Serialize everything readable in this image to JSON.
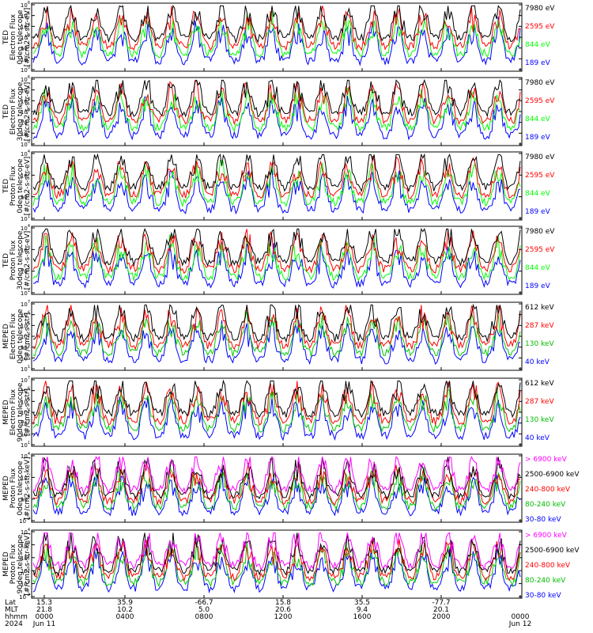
{
  "chart_data": [
    {
      "type": "line",
      "instrument": "TED",
      "ylabel_lines": [
        "TED",
        "Electron Flux",
        "0deg telescope",
        "[#/cm2-s-str-eV]"
      ],
      "yticks": [
        "10^0",
        "10^1",
        "10^2",
        "10^3",
        "10^4",
        "10^5",
        "10^6"
      ],
      "ylim": [
        1,
        1000000
      ],
      "yscale": "log",
      "series": [
        {
          "name": "7980 eV",
          "color": "#000000"
        },
        {
          "name": "2595 eV",
          "color": "#ff0000"
        },
        {
          "name": "844 eV",
          "color": "#00ff00"
        },
        {
          "name": "189 eV",
          "color": "#0000ff"
        }
      ]
    },
    {
      "type": "line",
      "instrument": "TED",
      "ylabel_lines": [
        "TED",
        "Electron Flux",
        "30deg telescope",
        "[#/cm2-s-str-eV]"
      ],
      "yticks": [
        "10^0",
        "10^1",
        "10^2",
        "10^3",
        "10^4",
        "10^5",
        "10^6"
      ],
      "ylim": [
        1,
        1000000
      ],
      "yscale": "log",
      "series": [
        {
          "name": "7980 eV",
          "color": "#000000"
        },
        {
          "name": "2595 eV",
          "color": "#ff0000"
        },
        {
          "name": "844 eV",
          "color": "#00ff00"
        },
        {
          "name": "189 eV",
          "color": "#0000ff"
        }
      ]
    },
    {
      "type": "line",
      "instrument": "TED",
      "ylabel_lines": [
        "TED",
        "Proton Flux",
        "0deg telescope",
        "[#/cm2-s-str-eV]"
      ],
      "yticks": [
        "10^1",
        "10^2",
        "10^3",
        "10^4"
      ],
      "ylim": [
        10,
        10000
      ],
      "yscale": "log",
      "series": [
        {
          "name": "7980 eV",
          "color": "#000000"
        },
        {
          "name": "2595 eV",
          "color": "#ff0000"
        },
        {
          "name": "844 eV",
          "color": "#00ff00"
        },
        {
          "name": "189 eV",
          "color": "#0000ff"
        }
      ]
    },
    {
      "type": "line",
      "instrument": "TED",
      "ylabel_lines": [
        "TED",
        "Proton Flux",
        "30deg telescope",
        "[#/cm2-s-str-eV]"
      ],
      "yticks": [
        "10^1",
        "10^2",
        "10^3",
        "10^4"
      ],
      "ylim": [
        10,
        10000
      ],
      "yscale": "log",
      "series": [
        {
          "name": "7980 eV",
          "color": "#000000"
        },
        {
          "name": "2595 eV",
          "color": "#ff0000"
        },
        {
          "name": "844 eV",
          "color": "#00ff00"
        },
        {
          "name": "189 eV",
          "color": "#0000ff"
        }
      ]
    },
    {
      "type": "line",
      "instrument": "MEPED",
      "ylabel_lines": [
        "MEPED",
        "Electron Flux",
        "0deg telescope",
        "[#/cm2-s-str]"
      ],
      "yticks": [
        "10^1",
        "10^2",
        "10^3",
        "10^4",
        "10^5",
        "10^6",
        "10^7"
      ],
      "ylim": [
        10,
        10000000
      ],
      "yscale": "log",
      "series": [
        {
          "name": "612 keV",
          "color": "#000000"
        },
        {
          "name": "287 keV",
          "color": "#ff0000"
        },
        {
          "name": "130 keV",
          "color": "#00cc00"
        },
        {
          "name": "40 keV",
          "color": "#0000ff"
        }
      ]
    },
    {
      "type": "line",
      "instrument": "MEPED",
      "ylabel_lines": [
        "MEPED",
        "Electron Flux",
        "90deg telescope",
        "[#/cm2-s-str]"
      ],
      "yticks": [
        "10^1",
        "10^2",
        "10^3",
        "10^4",
        "10^5",
        "10^6",
        "10^7"
      ],
      "ylim": [
        10,
        10000000
      ],
      "yscale": "log",
      "series": [
        {
          "name": "612 keV",
          "color": "#000000"
        },
        {
          "name": "287 keV",
          "color": "#ff0000"
        },
        {
          "name": "130 keV",
          "color": "#00cc00"
        },
        {
          "name": "40 keV",
          "color": "#0000ff"
        }
      ]
    },
    {
      "type": "line",
      "instrument": "MEPED",
      "ylabel_lines": [
        "MEPED",
        "Proton Flux",
        "0deg telescope",
        "[#/cm2-s-str-keV]"
      ],
      "yticks": [
        "10^-2",
        "10^0",
        "10^2",
        "10^4"
      ],
      "ylim": [
        0.01,
        100000
      ],
      "yscale": "log",
      "series": [
        {
          "name": "> 6900 keV",
          "color": "#ff00ff"
        },
        {
          "name": "2500-6900 keV",
          "color": "#000000"
        },
        {
          "name": "240-800 keV",
          "color": "#ff0000"
        },
        {
          "name": "80-240 keV",
          "color": "#00cc00"
        },
        {
          "name": "30-80 keV",
          "color": "#0000ff"
        }
      ]
    },
    {
      "type": "line",
      "instrument": "MEPED",
      "ylabel_lines": [
        "MEPED",
        "Proton Flux",
        "90deg telescope",
        "[#/cm2-s-str-keV]"
      ],
      "yticks": [
        "10^-2",
        "10^0",
        "10^1",
        "10^2",
        "10^3",
        "10^4"
      ],
      "ylim": [
        0.01,
        100000
      ],
      "yscale": "log",
      "series": [
        {
          "name": "> 6900 keV",
          "color": "#ff00ff"
        },
        {
          "name": "2500-6900 keV",
          "color": "#000000"
        },
        {
          "name": "240-800 keV",
          "color": "#ff0000"
        },
        {
          "name": "80-240 keV",
          "color": "#00cc00"
        },
        {
          "name": "30-80 keV",
          "color": "#0000ff"
        }
      ]
    }
  ],
  "x_axis": {
    "rows": [
      {
        "label": "Lat",
        "values": [
          "15.3",
          "35.9",
          "-66.7",
          "15.8",
          "35.5",
          "-77.7",
          ""
        ]
      },
      {
        "label": "MLT",
        "values": [
          "21.8",
          "10.2",
          "5.0",
          "20.6",
          "9.4",
          "20.1",
          ""
        ]
      },
      {
        "label": "hhmm",
        "values": [
          "0000",
          "0400",
          "0800",
          "1200",
          "1600",
          "2000",
          "0000"
        ]
      },
      {
        "label": "2024",
        "values": [
          "Jun 11",
          "",
          "",
          "",
          "",
          "",
          "Jun 12"
        ]
      }
    ]
  }
}
